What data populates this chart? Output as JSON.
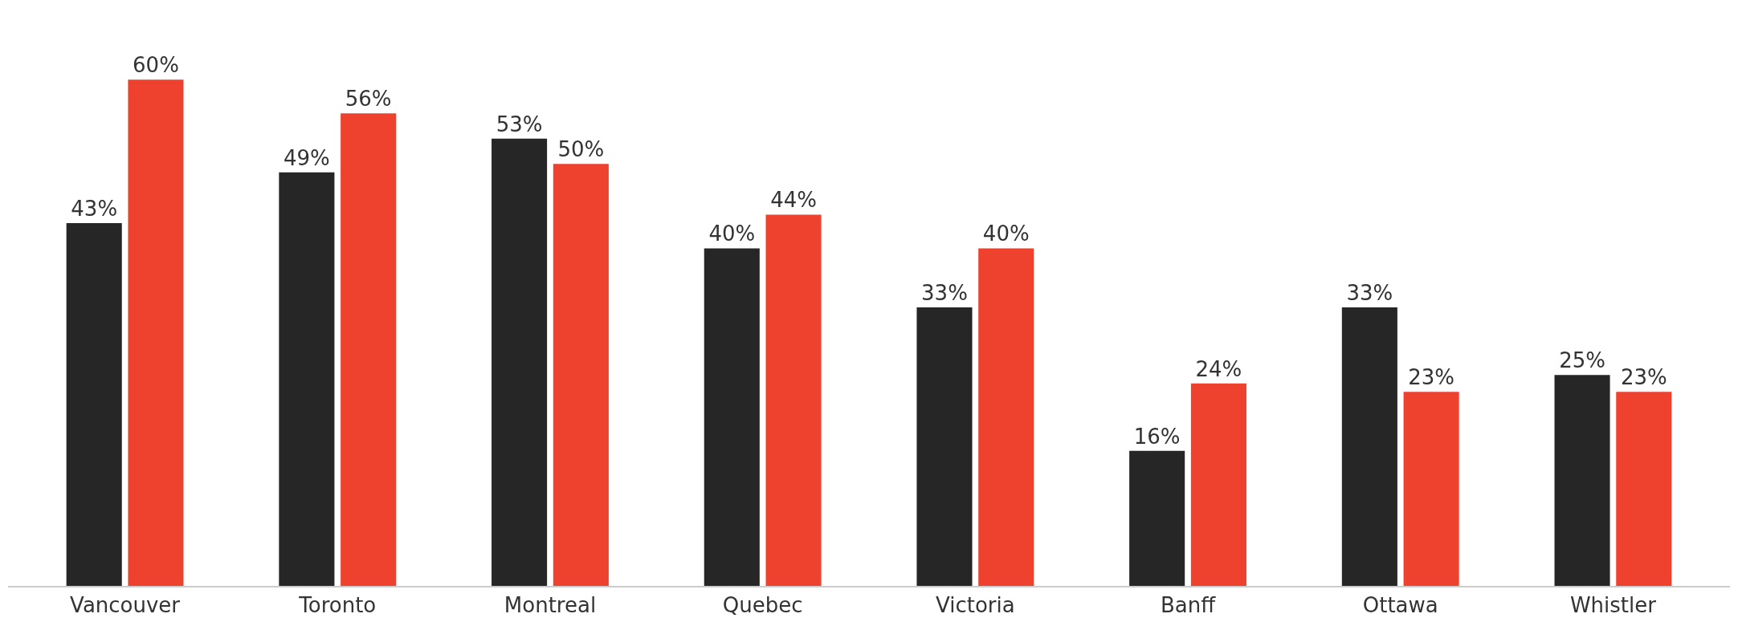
{
  "chart_data": {
    "type": "bar",
    "categories": [
      "Vancouver",
      "Toronto",
      "Montreal",
      "Quebec",
      "Victoria",
      "Banff",
      "Ottawa",
      "Whistler"
    ],
    "series": [
      {
        "color": "#262626",
        "values": [
          43,
          49,
          53,
          40,
          33,
          16,
          33,
          25
        ],
        "value_labels": [
          "43%",
          "49%",
          "53%",
          "40%",
          "33%",
          "16%",
          "33%",
          "25%"
        ]
      },
      {
        "color": "#ee412e",
        "values": [
          60,
          56,
          50,
          44,
          40,
          24,
          23,
          23
        ],
        "value_labels": [
          "60%",
          "56%",
          "50%",
          "44%",
          "40%",
          "24%",
          "23%",
          "23%"
        ]
      }
    ]
  }
}
